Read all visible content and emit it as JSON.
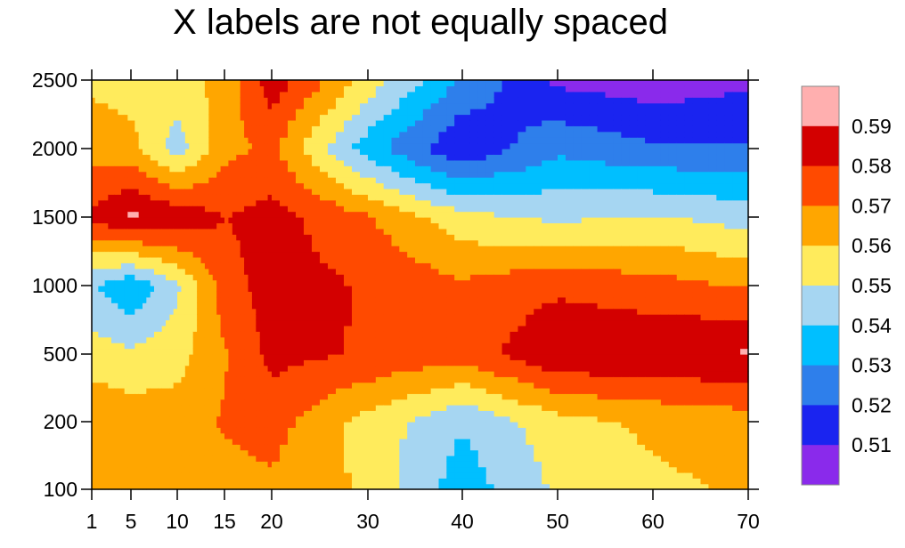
{
  "chart_data": {
    "type": "heatmap",
    "subtype": "filled-contour",
    "title": "X labels are not equally spaced",
    "xlabel": "",
    "ylabel": "",
    "x_ticks": [
      "1",
      "5",
      "10",
      "15",
      "20",
      "30",
      "40",
      "50",
      "60",
      "70"
    ],
    "y_ticks": [
      "100",
      "200",
      "500",
      "1000",
      "1500",
      "2000",
      "2500"
    ],
    "x_scale": "categorical-evenly-spaced",
    "y_scale": "categorical-evenly-spaced",
    "legend_placement": "right",
    "levels": [
      {
        "label": "0.59",
        "color": "#FFAFAF"
      },
      {
        "label": "0.58",
        "color": "#D30000"
      },
      {
        "label": "0.57",
        "color": "#FF4A00"
      },
      {
        "label": "0.56",
        "color": "#FFA600"
      },
      {
        "label": "0.55",
        "color": "#FFEB5C"
      },
      {
        "label": "0.54",
        "color": "#A6D6F2"
      },
      {
        "label": "0.53",
        "color": "#00BFFF"
      },
      {
        "label": "0.52",
        "color": "#2E7FEB"
      },
      {
        "label": "0.51",
        "color": "#1A24F0"
      },
      {
        "label": "",
        "color": "#8A2AEB"
      }
    ],
    "grid": [
      {
        "x": "1",
        "values": [
          0.566,
          0.568,
          0.555,
          0.541,
          0.582,
          0.566,
          0.558
        ]
      },
      {
        "x": "5",
        "values": [
          0.563,
          0.566,
          0.552,
          0.531,
          0.592,
          0.564,
          0.555
        ]
      },
      {
        "x": "10",
        "values": [
          0.561,
          0.565,
          0.556,
          0.548,
          0.588,
          0.545,
          0.556
        ]
      },
      {
        "x": "15",
        "values": [
          0.566,
          0.571,
          0.569,
          0.575,
          0.58,
          0.567,
          0.563
        ]
      },
      {
        "x": "20",
        "values": [
          0.568,
          0.574,
          0.583,
          0.585,
          0.584,
          0.572,
          0.586
        ]
      },
      {
        "x": "30",
        "values": [
          0.558,
          0.556,
          0.579,
          0.579,
          0.571,
          0.534,
          0.556
        ]
      },
      {
        "x": "40",
        "values": [
          0.534,
          0.541,
          0.574,
          0.572,
          0.553,
          0.511,
          0.528
        ]
      },
      {
        "x": "50",
        "values": [
          0.552,
          0.556,
          0.589,
          0.578,
          0.548,
          0.528,
          0.508
        ]
      },
      {
        "x": "60",
        "values": [
          0.558,
          0.562,
          0.589,
          0.574,
          0.551,
          0.522,
          0.504
        ]
      },
      {
        "x": "70",
        "values": [
          0.561,
          0.565,
          0.591,
          0.569,
          0.546,
          0.521,
          0.508
        ]
      }
    ]
  }
}
